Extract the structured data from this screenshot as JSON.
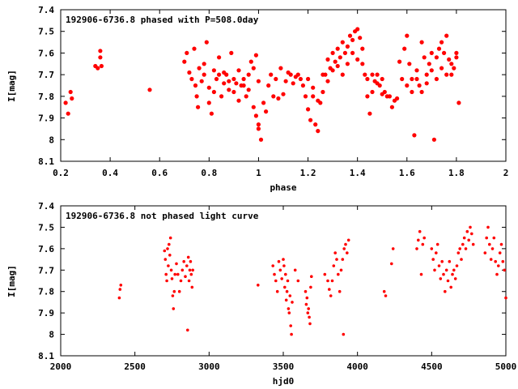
{
  "chart_data": [
    {
      "type": "scatter",
      "title": "192906-6736.8 phased with P=508.0day",
      "xlabel": "phase",
      "ylabel": "I[mag]",
      "xlim": [
        0.2,
        2.0
      ],
      "ylim": [
        7.4,
        8.1
      ],
      "y_inverted": true,
      "x_ticks": [
        "0.2",
        "0.4",
        "0.6",
        "0.8",
        "1",
        "1.2",
        "1.4",
        "1.6",
        "1.8",
        "2"
      ],
      "y_ticks": [
        "7.4",
        "7.5",
        "7.6",
        "7.7",
        "7.8",
        "7.9",
        "8",
        "8.1"
      ],
      "marker_color": "#ff0000",
      "grid": false,
      "points": [
        [
          0.22,
          7.83
        ],
        [
          0.23,
          7.88
        ],
        [
          0.24,
          7.78
        ],
        [
          0.245,
          7.81
        ],
        [
          0.34,
          7.66
        ],
        [
          0.35,
          7.67
        ],
        [
          0.36,
          7.59
        ],
        [
          0.36,
          7.62
        ],
        [
          0.365,
          7.66
        ],
        [
          0.56,
          7.77
        ],
        [
          0.7,
          7.64
        ],
        [
          0.71,
          7.6
        ],
        [
          0.72,
          7.69
        ],
        [
          0.73,
          7.72
        ],
        [
          0.74,
          7.58
        ],
        [
          0.745,
          7.75
        ],
        [
          0.75,
          7.8
        ],
        [
          0.755,
          7.85
        ],
        [
          0.76,
          7.67
        ],
        [
          0.77,
          7.73
        ],
        [
          0.78,
          7.65
        ],
        [
          0.79,
          7.55
        ],
        [
          0.8,
          7.83
        ],
        [
          0.81,
          7.88
        ],
        [
          0.82,
          7.78
        ],
        [
          0.83,
          7.72
        ],
        [
          0.84,
          7.62
        ],
        [
          0.85,
          7.8
        ],
        [
          0.86,
          7.69
        ],
        [
          0.87,
          7.7
        ],
        [
          0.88,
          7.77
        ],
        [
          0.89,
          7.6
        ],
        [
          0.9,
          7.72
        ],
        [
          0.91,
          7.74
        ],
        [
          0.92,
          7.68
        ],
        [
          0.93,
          7.75
        ],
        [
          0.94,
          7.72
        ],
        [
          0.95,
          7.8
        ],
        [
          0.96,
          7.7
        ],
        [
          0.97,
          7.64
        ],
        [
          0.98,
          7.67
        ],
        [
          0.99,
          7.61
        ],
        [
          1.0,
          7.73
        ],
        [
          0.78,
          7.7
        ],
        [
          0.8,
          7.76
        ],
        [
          0.82,
          7.68
        ],
        [
          0.84,
          7.7
        ],
        [
          0.86,
          7.74
        ],
        [
          0.88,
          7.73
        ],
        [
          0.9,
          7.78
        ],
        [
          0.92,
          7.82
        ],
        [
          0.94,
          7.75
        ],
        [
          0.96,
          7.77
        ],
        [
          0.98,
          7.85
        ],
        [
          0.99,
          7.89
        ],
        [
          1.0,
          7.95
        ],
        [
          1.01,
          8.0
        ],
        [
          1.0,
          7.93
        ],
        [
          1.02,
          7.83
        ],
        [
          1.03,
          7.87
        ],
        [
          1.04,
          7.75
        ],
        [
          1.05,
          7.7
        ],
        [
          1.06,
          7.8
        ],
        [
          1.07,
          7.72
        ],
        [
          1.08,
          7.81
        ],
        [
          1.09,
          7.67
        ],
        [
          1.1,
          7.79
        ],
        [
          1.11,
          7.73
        ],
        [
          1.12,
          7.69
        ],
        [
          1.13,
          7.7
        ],
        [
          1.14,
          7.74
        ],
        [
          1.15,
          7.71
        ],
        [
          1.16,
          7.7
        ],
        [
          1.17,
          7.72
        ],
        [
          1.18,
          7.75
        ],
        [
          1.19,
          7.8
        ],
        [
          1.2,
          7.86
        ],
        [
          1.21,
          7.91
        ],
        [
          1.22,
          7.8
        ],
        [
          1.23,
          7.93
        ],
        [
          1.24,
          7.96
        ],
        [
          1.25,
          7.83
        ],
        [
          1.26,
          7.78
        ],
        [
          1.27,
          7.7
        ],
        [
          1.28,
          7.63
        ],
        [
          1.29,
          7.67
        ],
        [
          1.3,
          7.6
        ],
        [
          1.31,
          7.64
        ],
        [
          1.32,
          7.58
        ],
        [
          1.33,
          7.62
        ],
        [
          1.34,
          7.55
        ],
        [
          1.35,
          7.6
        ],
        [
          1.36,
          7.57
        ],
        [
          1.37,
          7.52
        ],
        [
          1.38,
          7.54
        ],
        [
          1.39,
          7.5
        ],
        [
          1.4,
          7.49
        ],
        [
          1.41,
          7.53
        ],
        [
          1.42,
          7.58
        ],
        [
          1.43,
          7.7
        ],
        [
          1.44,
          7.8
        ],
        [
          1.45,
          7.88
        ],
        [
          1.46,
          7.78
        ],
        [
          1.47,
          7.73
        ],
        [
          1.48,
          7.7
        ],
        [
          1.49,
          7.75
        ],
        [
          1.5,
          7.79
        ],
        [
          1.51,
          7.78
        ],
        [
          1.52,
          7.8
        ],
        [
          1.53,
          7.8
        ],
        [
          1.54,
          7.85
        ],
        [
          1.55,
          7.82
        ],
        [
          1.56,
          7.81
        ],
        [
          1.57,
          7.64
        ],
        [
          1.58,
          7.72
        ],
        [
          1.59,
          7.58
        ],
        [
          1.6,
          7.52
        ],
        [
          1.61,
          7.65
        ],
        [
          1.62,
          7.72
        ],
        [
          1.63,
          7.98
        ],
        [
          1.64,
          7.68
        ],
        [
          1.65,
          7.75
        ],
        [
          1.66,
          7.55
        ],
        [
          1.67,
          7.62
        ],
        [
          1.68,
          7.7
        ],
        [
          1.69,
          7.65
        ],
        [
          1.7,
          7.6
        ],
        [
          1.71,
          8.0
        ],
        [
          1.72,
          7.62
        ],
        [
          1.73,
          7.58
        ],
        [
          1.74,
          7.55
        ],
        [
          1.75,
          7.6
        ],
        [
          1.76,
          7.52
        ],
        [
          1.77,
          7.63
        ],
        [
          1.78,
          7.7
        ],
        [
          1.79,
          7.67
        ],
        [
          1.8,
          7.62
        ],
        [
          1.81,
          7.83
        ],
        [
          1.2,
          7.72
        ],
        [
          1.22,
          7.76
        ],
        [
          1.24,
          7.82
        ],
        [
          1.26,
          7.7
        ],
        [
          1.28,
          7.73
        ],
        [
          1.3,
          7.68
        ],
        [
          1.32,
          7.66
        ],
        [
          1.34,
          7.7
        ],
        [
          1.36,
          7.65
        ],
        [
          1.38,
          7.6
        ],
        [
          1.4,
          7.63
        ],
        [
          1.42,
          7.65
        ],
        [
          1.44,
          7.72
        ],
        [
          1.46,
          7.7
        ],
        [
          1.48,
          7.74
        ],
        [
          1.5,
          7.72
        ],
        [
          1.6,
          7.75
        ],
        [
          1.62,
          7.78
        ],
        [
          1.64,
          7.72
        ],
        [
          1.66,
          7.78
        ],
        [
          1.68,
          7.74
        ],
        [
          1.7,
          7.68
        ],
        [
          1.72,
          7.72
        ],
        [
          1.74,
          7.67
        ],
        [
          1.76,
          7.7
        ],
        [
          1.78,
          7.65
        ],
        [
          1.8,
          7.6
        ]
      ]
    },
    {
      "type": "scatter",
      "title": "192906-6736.8 not phased light curve",
      "xlabel": "hjd0",
      "ylabel": "I[mag]",
      "xlim": [
        2000,
        5000
      ],
      "ylim": [
        7.4,
        8.1
      ],
      "y_inverted": true,
      "x_ticks": [
        "2000",
        "2500",
        "3000",
        "3500",
        "4000",
        "4500",
        "5000"
      ],
      "y_ticks": [
        "7.4",
        "7.5",
        "7.6",
        "7.7",
        "7.8",
        "7.9",
        "8",
        "8.1"
      ],
      "marker_color": "#ff0000",
      "grid": false,
      "points": [
        [
          2395,
          7.83
        ],
        [
          2400,
          7.79
        ],
        [
          2405,
          7.77
        ],
        [
          2700,
          7.61
        ],
        [
          2705,
          7.65
        ],
        [
          2710,
          7.72
        ],
        [
          2715,
          7.75
        ],
        [
          2720,
          7.6
        ],
        [
          2725,
          7.68
        ],
        [
          2730,
          7.58
        ],
        [
          2735,
          7.63
        ],
        [
          2740,
          7.55
        ],
        [
          2745,
          7.7
        ],
        [
          2750,
          7.74
        ],
        [
          2755,
          7.82
        ],
        [
          2760,
          7.88
        ],
        [
          2765,
          7.8
        ],
        [
          2770,
          7.72
        ],
        [
          2780,
          7.67
        ],
        [
          2790,
          7.72
        ],
        [
          2800,
          7.8
        ],
        [
          2810,
          7.75
        ],
        [
          2820,
          7.7
        ],
        [
          2830,
          7.66
        ],
        [
          2840,
          7.73
        ],
        [
          2850,
          7.68
        ],
        [
          2855,
          7.98
        ],
        [
          2860,
          7.64
        ],
        [
          2865,
          7.75
        ],
        [
          2870,
          7.7
        ],
        [
          2875,
          7.66
        ],
        [
          2880,
          7.72
        ],
        [
          2885,
          7.78
        ],
        [
          2890,
          7.7
        ],
        [
          3330,
          7.77
        ],
        [
          3430,
          7.68
        ],
        [
          3440,
          7.72
        ],
        [
          3450,
          7.75
        ],
        [
          3460,
          7.8
        ],
        [
          3470,
          7.66
        ],
        [
          3480,
          7.7
        ],
        [
          3490,
          7.74
        ],
        [
          3500,
          7.65
        ],
        [
          3505,
          7.68
        ],
        [
          3510,
          7.78
        ],
        [
          3515,
          7.72
        ],
        [
          3520,
          7.84
        ],
        [
          3525,
          7.8
        ],
        [
          3530,
          7.75
        ],
        [
          3535,
          7.88
        ],
        [
          3540,
          7.9
        ],
        [
          3545,
          7.82
        ],
        [
          3550,
          7.96
        ],
        [
          3555,
          8.0
        ],
        [
          3560,
          7.85
        ],
        [
          3580,
          7.7
        ],
        [
          3600,
          7.75
        ],
        [
          3650,
          7.8
        ],
        [
          3655,
          7.86
        ],
        [
          3660,
          7.83
        ],
        [
          3665,
          7.9
        ],
        [
          3670,
          7.88
        ],
        [
          3675,
          7.92
        ],
        [
          3680,
          7.95
        ],
        [
          3685,
          7.78
        ],
        [
          3690,
          7.73
        ],
        [
          3780,
          7.72
        ],
        [
          3800,
          7.75
        ],
        [
          3810,
          7.79
        ],
        [
          3820,
          7.82
        ],
        [
          3830,
          7.75
        ],
        [
          3840,
          7.68
        ],
        [
          3850,
          7.62
        ],
        [
          3860,
          7.65
        ],
        [
          3870,
          7.72
        ],
        [
          3880,
          7.8
        ],
        [
          3890,
          7.7
        ],
        [
          3900,
          7.65
        ],
        [
          3905,
          8.0
        ],
        [
          3910,
          7.6
        ],
        [
          3920,
          7.58
        ],
        [
          3930,
          7.62
        ],
        [
          3940,
          7.56
        ],
        [
          4180,
          7.8
        ],
        [
          4190,
          7.82
        ],
        [
          4230,
          7.67
        ],
        [
          4240,
          7.6
        ],
        [
          4400,
          7.6
        ],
        [
          4410,
          7.56
        ],
        [
          4420,
          7.52
        ],
        [
          4430,
          7.72
        ],
        [
          4440,
          7.58
        ],
        [
          4450,
          7.55
        ],
        [
          4500,
          7.6
        ],
        [
          4510,
          7.65
        ],
        [
          4520,
          7.7
        ],
        [
          4530,
          7.62
        ],
        [
          4540,
          7.58
        ],
        [
          4550,
          7.68
        ],
        [
          4560,
          7.74
        ],
        [
          4570,
          7.66
        ],
        [
          4580,
          7.72
        ],
        [
          4590,
          7.8
        ],
        [
          4600,
          7.7
        ],
        [
          4610,
          7.75
        ],
        [
          4620,
          7.66
        ],
        [
          4630,
          7.78
        ],
        [
          4640,
          7.72
        ],
        [
          4650,
          7.7
        ],
        [
          4660,
          7.74
        ],
        [
          4670,
          7.68
        ],
        [
          4680,
          7.62
        ],
        [
          4690,
          7.6
        ],
        [
          4700,
          7.65
        ],
        [
          4710,
          7.58
        ],
        [
          4720,
          7.55
        ],
        [
          4730,
          7.6
        ],
        [
          4740,
          7.52
        ],
        [
          4750,
          7.56
        ],
        [
          4760,
          7.5
        ],
        [
          4770,
          7.53
        ],
        [
          4780,
          7.58
        ],
        [
          4860,
          7.62
        ],
        [
          4870,
          7.55
        ],
        [
          4880,
          7.5
        ],
        [
          4890,
          7.58
        ],
        [
          4900,
          7.65
        ],
        [
          4910,
          7.6
        ],
        [
          4920,
          7.55
        ],
        [
          4930,
          7.66
        ],
        [
          4940,
          7.72
        ],
        [
          4950,
          7.68
        ],
        [
          4960,
          7.62
        ],
        [
          4970,
          7.58
        ],
        [
          4980,
          7.66
        ],
        [
          4990,
          7.7
        ],
        [
          5000,
          7.83
        ]
      ]
    }
  ]
}
